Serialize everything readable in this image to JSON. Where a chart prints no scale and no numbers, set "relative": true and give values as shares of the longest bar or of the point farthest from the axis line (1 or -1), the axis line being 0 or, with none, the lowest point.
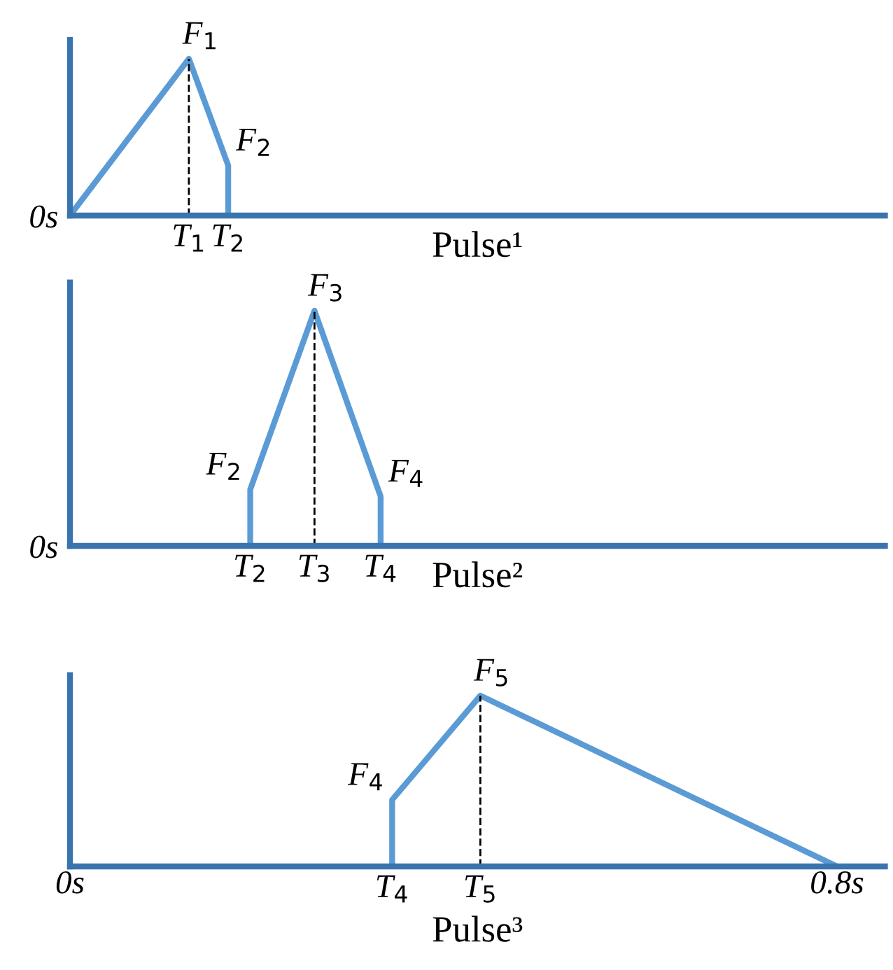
{
  "chart_data": [
    {
      "type": "line",
      "relative": true,
      "xlabel": "Pulse¹",
      "xlim": [
        0,
        0.85
      ],
      "tick_labels": false,
      "grid": false,
      "legend": false,
      "series": [
        {
          "color": "#5b9bd5",
          "line_style": "solid",
          "x": [
            0,
            0.124,
            0.165,
            0.165
          ],
          "values": [
            0,
            1,
            0.32,
            0
          ]
        },
        {
          "color": "#000000",
          "line_style": "dashed",
          "x": [
            0.124,
            0.124
          ],
          "values": [
            0,
            1
          ]
        }
      ],
      "annotations": [
        {
          "text": "F$_{1}$",
          "x": 0.124,
          "y": 1
        },
        {
          "text": "F$_{2}$",
          "x": 0.165,
          "y": 0.32
        },
        {
          "text": "T$_{1}$",
          "x": 0.124,
          "y": 0
        },
        {
          "text": "T$_{2}$",
          "x": 0.165,
          "y": 0
        },
        "0s"
      ]
    },
    {
      "type": "line",
      "relative": true,
      "xlabel": "Pulse²",
      "xlim": [
        0,
        0.85
      ],
      "tick_labels": false,
      "grid": false,
      "legend": false,
      "series": [
        {
          "color": "#5b9bd5",
          "line_style": "solid",
          "x": [
            0.188,
            0.188,
            0.255,
            0.324,
            0.324
          ],
          "values": [
            0,
            0.24,
            1,
            0.21,
            0
          ]
        },
        {
          "color": "#000000",
          "line_style": "dashed",
          "x": [
            0.255,
            0.255
          ],
          "values": [
            0,
            1
          ]
        }
      ],
      "annotations": [
        {
          "text": "F$_{2}$",
          "x": 0.188,
          "y": 0.24
        },
        {
          "text": "F$_{3}$",
          "x": 0.255,
          "y": 1
        },
        {
          "text": "F$_{4}$",
          "x": 0.324,
          "y": 0.21
        },
        {
          "text": "T$_{2}$",
          "x": 0.188,
          "y": 0
        },
        {
          "text": "T$_{3}$",
          "x": 0.255,
          "y": 0
        },
        {
          "text": "T$_{4}$",
          "x": 0.324,
          "y": 0
        },
        "0s"
      ]
    },
    {
      "type": "line",
      "relative": true,
      "xlabel": "Pulse³",
      "xlim": [
        0,
        0.85
      ],
      "tick_labels": "x",
      "grid": false,
      "legend": false,
      "xticks": [
        {
          "value": 0,
          "label": "0s"
        },
        {
          "value": 0.8,
          "label": "0.8s"
        }
      ],
      "series": [
        {
          "color": "#5b9bd5",
          "line_style": "solid",
          "x": [
            0.336,
            0.336,
            0.428,
            0.8
          ],
          "values": [
            0,
            0.39,
            1,
            0
          ]
        },
        {
          "color": "#000000",
          "line_style": "dashed",
          "x": [
            0.428,
            0.428
          ],
          "values": [
            0,
            1
          ]
        }
      ],
      "annotations": [
        {
          "text": "F$_{4}$",
          "x": 0.336,
          "y": 0.39
        },
        {
          "text": "F$_{5}$",
          "x": 0.428,
          "y": 1
        },
        {
          "text": "T$_{4}$",
          "x": 0.336,
          "y": 0
        },
        {
          "text": "T$_{5}$",
          "x": 0.428,
          "y": 0
        }
      ]
    }
  ]
}
